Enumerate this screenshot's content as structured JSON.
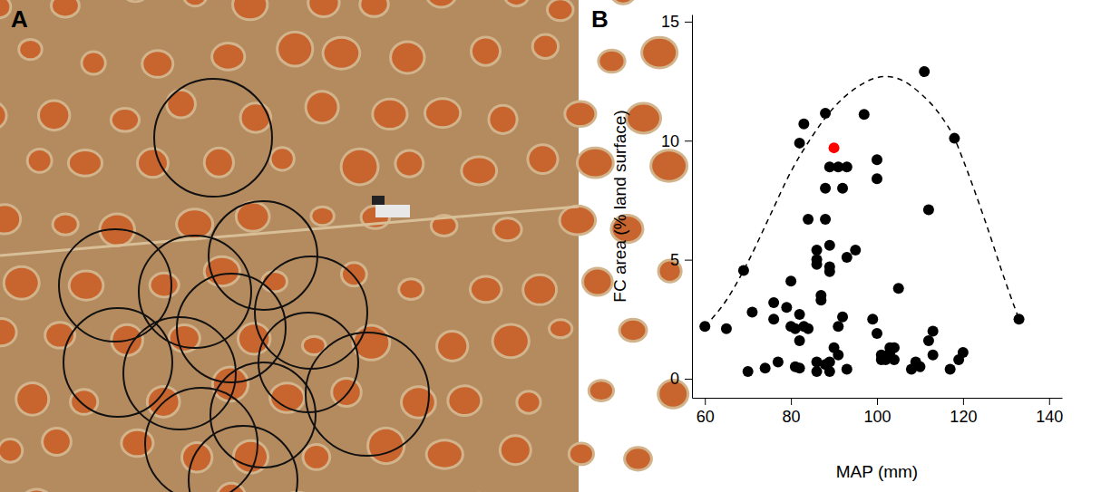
{
  "image_panel": {
    "label": "A"
  },
  "chart_data": {
    "type": "scatter",
    "panel_label": "B",
    "x_label": "MAP (mm)",
    "y_label": "FC area (% land surface)",
    "xlim": [
      57,
      143
    ],
    "xticks": [
      60,
      80,
      100,
      120,
      140
    ],
    "ylim": [
      -0.8,
      15.3
    ],
    "yticks": [
      0,
      5,
      10,
      15
    ],
    "grid": false,
    "series": [
      {
        "type": "line",
        "line_style": "dashed",
        "color": "#000000",
        "x": [
          60,
          65,
          70,
          75,
          80,
          85,
          90,
          95,
          100,
          102,
          105,
          110,
          115,
          118,
          120,
          125,
          130,
          133
        ],
        "values": [
          2.2,
          3.3,
          4.9,
          6.8,
          8.7,
          10.2,
          11.4,
          12.2,
          12.65,
          12.7,
          12.6,
          12.0,
          11.0,
          10.1,
          9.2,
          6.7,
          4.0,
          2.5
        ]
      },
      {
        "type": "scatter",
        "marker": "circle",
        "color": "#000000",
        "x": [
          60,
          65,
          69,
          70,
          71,
          74,
          76,
          76,
          77,
          79,
          80,
          80,
          81,
          81,
          82,
          82,
          82,
          82,
          83,
          83,
          84,
          84,
          86,
          86,
          86,
          86,
          86,
          87,
          87,
          88,
          88,
          88,
          88,
          89,
          89,
          89,
          89,
          89,
          89,
          90,
          91,
          91,
          91,
          92,
          92,
          93,
          93,
          93,
          95,
          97,
          99,
          100,
          100,
          100,
          101,
          101,
          102,
          103,
          103,
          104,
          104,
          105,
          108,
          109,
          110,
          111,
          112,
          112,
          113,
          113,
          117,
          118,
          119,
          120,
          133
        ],
        "values": [
          2.2,
          2.1,
          4.55,
          0.3,
          2.8,
          0.45,
          3.2,
          2.5,
          0.7,
          3.0,
          4.1,
          2.2,
          2.1,
          0.5,
          2.7,
          0.45,
          1.6,
          9.9,
          10.7,
          2.2,
          2.1,
          6.7,
          5.4,
          5.0,
          4.8,
          0.7,
          0.3,
          3.3,
          3.5,
          11.15,
          8.0,
          6.7,
          0.6,
          8.9,
          5.6,
          4.7,
          4.5,
          0.3,
          0.7,
          1.3,
          8.9,
          2.2,
          1.0,
          8.0,
          2.6,
          8.9,
          5.1,
          0.4,
          5.4,
          11.1,
          2.5,
          9.2,
          8.4,
          1.9,
          0.8,
          1.0,
          0.8,
          1.1,
          1.3,
          1.3,
          0.8,
          3.8,
          0.4,
          0.7,
          0.5,
          12.9,
          7.1,
          1.6,
          2.0,
          1.0,
          0.4,
          10.1,
          0.8,
          1.1,
          2.5
        ]
      },
      {
        "type": "scatter",
        "marker": "circle",
        "color": "#ff0000",
        "x": [
          90
        ],
        "values": [
          9.7
        ]
      }
    ]
  }
}
